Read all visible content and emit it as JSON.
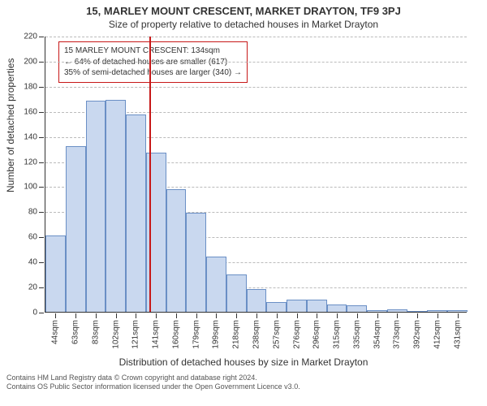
{
  "title": "15, MARLEY MOUNT CRESCENT, MARKET DRAYTON, TF9 3PJ",
  "subtitle": "Size of property relative to detached houses in Market Drayton",
  "ylabel": "Number of detached properties",
  "xlabel": "Distribution of detached houses by size in Market Drayton",
  "footer_line1": "Contains HM Land Registry data © Crown copyright and database right 2024.",
  "footer_line2": "Contains OS Public Sector information licensed under the Open Government Licence v3.0.",
  "chart": {
    "type": "histogram",
    "ylim": [
      0,
      220
    ],
    "ytick_step": 20,
    "background_color": "#ffffff",
    "grid_color": "#bbbbbb",
    "axis_color": "#333333",
    "bar_fill": "#c9d8ef",
    "bar_border": "#6a8fc5",
    "bar_width_ratio": 1.0,
    "label_fontsize": 10,
    "axis_label_fontsize": 12,
    "title_fontsize": 13,
    "marker": {
      "value_sqm": 134,
      "color": "#c71818",
      "width": 2
    },
    "callout": {
      "border_color": "#c71818",
      "lines": [
        "15 MARLEY MOUNT CRESCENT: 134sqm",
        "← 64% of detached houses are smaller (617)",
        "35% of semi-detached houses are larger (340) →"
      ]
    },
    "categories": [
      "44sqm",
      "63sqm",
      "83sqm",
      "102sqm",
      "121sqm",
      "141sqm",
      "160sqm",
      "179sqm",
      "199sqm",
      "218sqm",
      "238sqm",
      "257sqm",
      "276sqm",
      "296sqm",
      "315sqm",
      "335sqm",
      "354sqm",
      "373sqm",
      "392sqm",
      "412sqm",
      "431sqm"
    ],
    "values": [
      61,
      132,
      168,
      169,
      157,
      127,
      98,
      79,
      44,
      30,
      18,
      8,
      10,
      10,
      6,
      5,
      1,
      2,
      0,
      1,
      1
    ]
  }
}
